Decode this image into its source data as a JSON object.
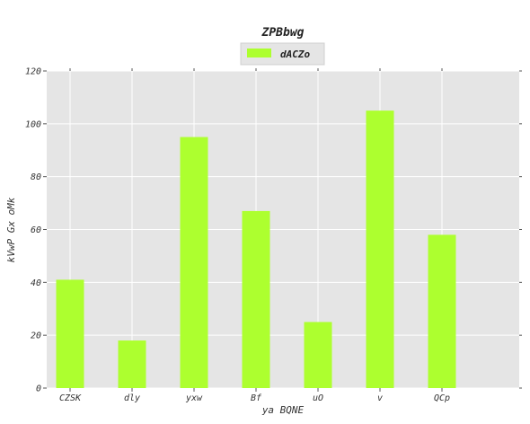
{
  "chart_data": {
    "type": "bar",
    "title": "ZPBbwg",
    "xlabel": "ya BQNE",
    "ylabel": "kVwP Gx oMk",
    "categories": [
      "CZSK",
      "dly",
      "yxw",
      "Bf",
      "uO",
      "v",
      "QCp"
    ],
    "series": [
      {
        "name": "dACZo",
        "values": [
          41,
          18,
          95,
          67,
          25,
          105,
          58
        ]
      }
    ],
    "ylim": [
      0,
      120
    ],
    "yticks": [
      0,
      20,
      40,
      60,
      80,
      100,
      120
    ],
    "grid": true,
    "legend_position": "top-center",
    "colors": {
      "bar": "#adff2f",
      "plot_bg": "#e5e5e5",
      "grid": "#ffffff"
    }
  }
}
